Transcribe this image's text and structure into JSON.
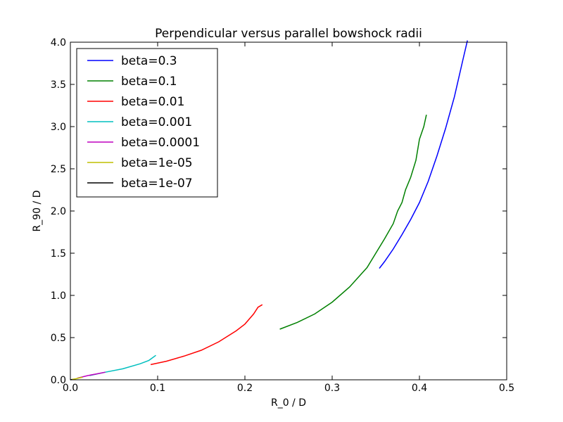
{
  "chart_data": {
    "type": "line",
    "title": "Perpendicular versus parallel bowshock radii",
    "xlabel": "R_0 / D",
    "ylabel": "R_90 / D",
    "xlim": [
      0.0,
      0.5
    ],
    "ylim": [
      0.0,
      4.0
    ],
    "xticks": [
      0.0,
      0.1,
      0.2,
      0.3,
      0.4,
      0.5
    ],
    "xtick_labels": [
      "0.0",
      "0.1",
      "0.2",
      "0.3",
      "0.4",
      "0.5"
    ],
    "yticks": [
      0.0,
      0.5,
      1.0,
      1.5,
      2.0,
      2.5,
      3.0,
      3.5,
      4.0
    ],
    "ytick_labels": [
      "0.0",
      "0.5",
      "1.0",
      "1.5",
      "2.0",
      "2.5",
      "3.0",
      "3.5",
      "4.0"
    ],
    "grid": false,
    "legend_position": "top-left",
    "series": [
      {
        "name": "beta=0.3",
        "color": "#0000ff",
        "x": [
          0.354,
          0.36,
          0.37,
          0.38,
          0.39,
          0.4,
          0.41,
          0.42,
          0.43,
          0.44,
          0.45,
          0.455
        ],
        "y": [
          1.32,
          1.4,
          1.55,
          1.72,
          1.9,
          2.1,
          2.35,
          2.65,
          2.98,
          3.35,
          3.8,
          4.02
        ]
      },
      {
        "name": "beta=0.1",
        "color": "#008000",
        "x": [
          0.24,
          0.26,
          0.28,
          0.3,
          0.32,
          0.34,
          0.35,
          0.36,
          0.37,
          0.375,
          0.38,
          0.384,
          0.39,
          0.396,
          0.4,
          0.405,
          0.408
        ],
        "y": [
          0.6,
          0.68,
          0.78,
          0.92,
          1.1,
          1.33,
          1.5,
          1.67,
          1.85,
          2.0,
          2.1,
          2.25,
          2.4,
          2.6,
          2.85,
          3.0,
          3.14
        ]
      },
      {
        "name": "beta=0.01",
        "color": "#ff0000",
        "x": [
          0.092,
          0.11,
          0.13,
          0.15,
          0.17,
          0.19,
          0.2,
          0.21,
          0.215,
          0.22
        ],
        "y": [
          0.18,
          0.22,
          0.28,
          0.35,
          0.45,
          0.58,
          0.66,
          0.78,
          0.86,
          0.89
        ]
      },
      {
        "name": "beta=0.001",
        "color": "#00bfbf",
        "x": [
          0.022,
          0.04,
          0.06,
          0.08,
          0.09,
          0.098
        ],
        "y": [
          0.05,
          0.09,
          0.13,
          0.19,
          0.23,
          0.29
        ]
      },
      {
        "name": "beta=0.0001",
        "color": "#bf00bf",
        "x": [
          0.008,
          0.02,
          0.03,
          0.04
        ],
        "y": [
          0.02,
          0.05,
          0.07,
          0.09
        ]
      },
      {
        "name": "beta=1e-05",
        "color": "#bfbf00",
        "x": [
          0.002,
          0.006,
          0.01,
          0.014
        ],
        "y": [
          0.005,
          0.012,
          0.022,
          0.03
        ]
      },
      {
        "name": "beta=1e-07",
        "color": "#000000",
        "x": [
          0.0,
          0.001,
          0.002
        ],
        "y": [
          0.0,
          0.002,
          0.004
        ]
      }
    ]
  }
}
